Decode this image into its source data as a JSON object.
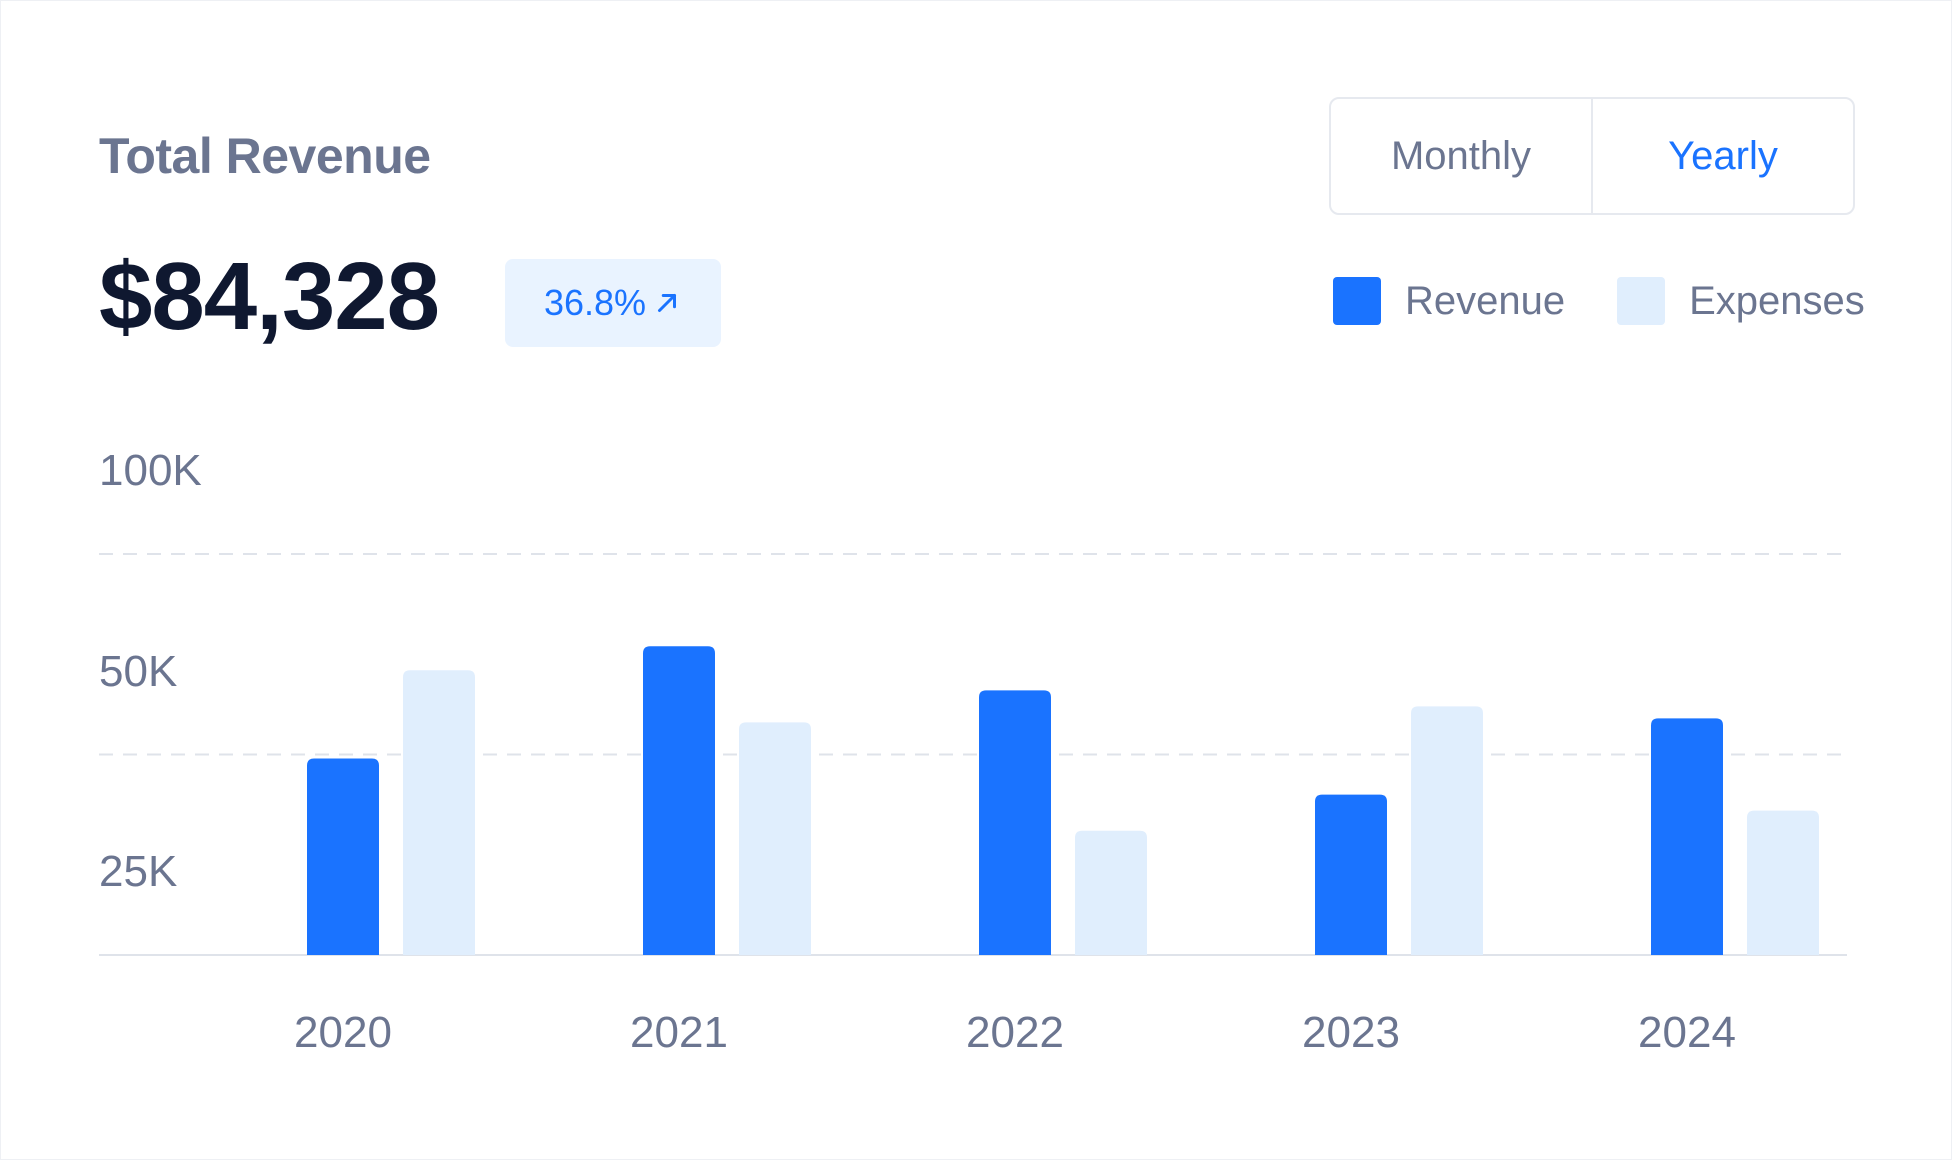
{
  "header": {
    "title": "Total Revenue",
    "total": "$84,328",
    "change": "36.8%",
    "change_icon": "arrow-up-right-icon"
  },
  "toggle": {
    "options": [
      "Monthly",
      "Yearly"
    ],
    "selected": "Yearly"
  },
  "colors": {
    "revenue": "#1a73ff",
    "expenses": "#e0eefd",
    "text_muted": "#6b7590",
    "grid": "#dfe3ea"
  },
  "chart_data": {
    "type": "bar",
    "categories": [
      "2020",
      "2021",
      "2022",
      "2023",
      "2024"
    ],
    "series": [
      {
        "name": "Revenue",
        "values": [
          49,
          77,
          66,
          40,
          59
        ]
      },
      {
        "name": "Expenses",
        "values": [
          71,
          58,
          31,
          62,
          36
        ]
      }
    ],
    "y_tick_labels": [
      "100K",
      "50K",
      "25K"
    ],
    "y_gridlines": [
      100,
      50
    ],
    "ylim": [
      0,
      100
    ],
    "legend": "top-right",
    "grid": "dashed horizontal"
  }
}
